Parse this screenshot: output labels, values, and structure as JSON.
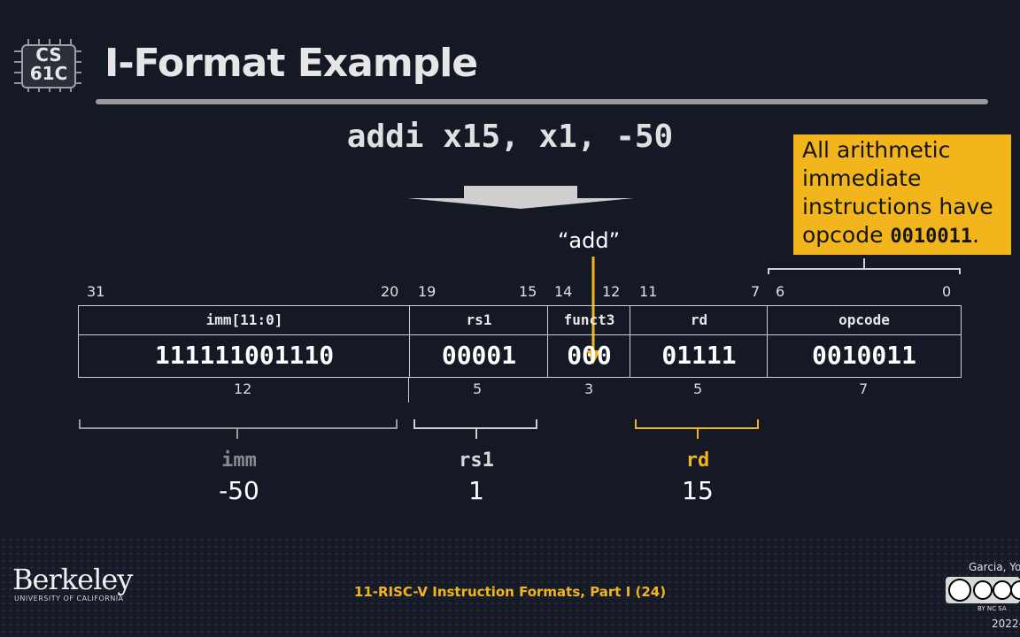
{
  "logo": {
    "line1": "CS",
    "line2": "61C"
  },
  "title": "I-Format Example",
  "instruction": "addi x15, x1, -50",
  "callout": {
    "text": "All arithmetic immediate instructions have opcode ",
    "opcode": "0010011",
    "suffix": "."
  },
  "add_label": "“add”",
  "bit_numbers": [
    "31",
    "20",
    "19",
    "15",
    "14",
    "12",
    "11",
    "7",
    "6",
    "0"
  ],
  "fields": [
    {
      "name": "imm[11:0]",
      "value": "111111001110",
      "width": "12"
    },
    {
      "name": "rs1",
      "value": "00001",
      "width": "5"
    },
    {
      "name": "funct3",
      "value": "000",
      "width": "3"
    },
    {
      "name": "rd",
      "value": "01111",
      "width": "5"
    },
    {
      "name": "opcode",
      "value": "0010011",
      "width": "7"
    }
  ],
  "decoded": [
    {
      "name": "imm",
      "value": "-50",
      "color": "#8a8a8a"
    },
    {
      "name": "rs1",
      "value": "1",
      "color": "#d8d8d8"
    },
    {
      "name": "rd",
      "value": "15",
      "color": "#f2b61c"
    }
  ],
  "footer": {
    "university": "Berkeley",
    "university_sub": "UNIVERSITY OF CALIFORNIA",
    "lecture": "11-RISC-V Instruction Formats, Part I (24)",
    "author": "Garcia, Yo",
    "cc_labels": "BY   NC   SA",
    "year": "2022-"
  }
}
